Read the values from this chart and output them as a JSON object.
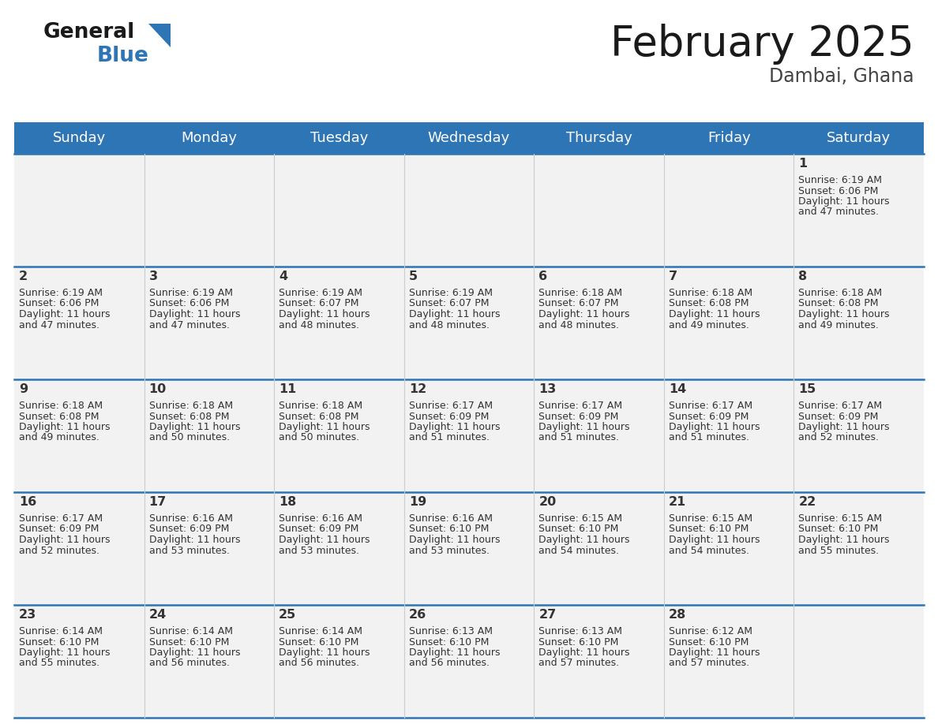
{
  "title": "February 2025",
  "subtitle": "Dambai, Ghana",
  "header_color": "#2E75B6",
  "header_text_color": "#FFFFFF",
  "cell_bg": "#F2F2F2",
  "border_color": "#2E75B6",
  "text_color": "#333333",
  "day_names": [
    "Sunday",
    "Monday",
    "Tuesday",
    "Wednesday",
    "Thursday",
    "Friday",
    "Saturday"
  ],
  "days": [
    {
      "day": 1,
      "col": 6,
      "row": 0,
      "sunrise": "6:19 AM",
      "sunset": "6:06 PM",
      "daylight": "11 hours",
      "daylight2": "and 47 minutes."
    },
    {
      "day": 2,
      "col": 0,
      "row": 1,
      "sunrise": "6:19 AM",
      "sunset": "6:06 PM",
      "daylight": "11 hours",
      "daylight2": "and 47 minutes."
    },
    {
      "day": 3,
      "col": 1,
      "row": 1,
      "sunrise": "6:19 AM",
      "sunset": "6:06 PM",
      "daylight": "11 hours",
      "daylight2": "and 47 minutes."
    },
    {
      "day": 4,
      "col": 2,
      "row": 1,
      "sunrise": "6:19 AM",
      "sunset": "6:07 PM",
      "daylight": "11 hours",
      "daylight2": "and 48 minutes."
    },
    {
      "day": 5,
      "col": 3,
      "row": 1,
      "sunrise": "6:19 AM",
      "sunset": "6:07 PM",
      "daylight": "11 hours",
      "daylight2": "and 48 minutes."
    },
    {
      "day": 6,
      "col": 4,
      "row": 1,
      "sunrise": "6:18 AM",
      "sunset": "6:07 PM",
      "daylight": "11 hours",
      "daylight2": "and 48 minutes."
    },
    {
      "day": 7,
      "col": 5,
      "row": 1,
      "sunrise": "6:18 AM",
      "sunset": "6:08 PM",
      "daylight": "11 hours",
      "daylight2": "and 49 minutes."
    },
    {
      "day": 8,
      "col": 6,
      "row": 1,
      "sunrise": "6:18 AM",
      "sunset": "6:08 PM",
      "daylight": "11 hours",
      "daylight2": "and 49 minutes."
    },
    {
      "day": 9,
      "col": 0,
      "row": 2,
      "sunrise": "6:18 AM",
      "sunset": "6:08 PM",
      "daylight": "11 hours",
      "daylight2": "and 49 minutes."
    },
    {
      "day": 10,
      "col": 1,
      "row": 2,
      "sunrise": "6:18 AM",
      "sunset": "6:08 PM",
      "daylight": "11 hours",
      "daylight2": "and 50 minutes."
    },
    {
      "day": 11,
      "col": 2,
      "row": 2,
      "sunrise": "6:18 AM",
      "sunset": "6:08 PM",
      "daylight": "11 hours",
      "daylight2": "and 50 minutes."
    },
    {
      "day": 12,
      "col": 3,
      "row": 2,
      "sunrise": "6:17 AM",
      "sunset": "6:09 PM",
      "daylight": "11 hours",
      "daylight2": "and 51 minutes."
    },
    {
      "day": 13,
      "col": 4,
      "row": 2,
      "sunrise": "6:17 AM",
      "sunset": "6:09 PM",
      "daylight": "11 hours",
      "daylight2": "and 51 minutes."
    },
    {
      "day": 14,
      "col": 5,
      "row": 2,
      "sunrise": "6:17 AM",
      "sunset": "6:09 PM",
      "daylight": "11 hours",
      "daylight2": "and 51 minutes."
    },
    {
      "day": 15,
      "col": 6,
      "row": 2,
      "sunrise": "6:17 AM",
      "sunset": "6:09 PM",
      "daylight": "11 hours",
      "daylight2": "and 52 minutes."
    },
    {
      "day": 16,
      "col": 0,
      "row": 3,
      "sunrise": "6:17 AM",
      "sunset": "6:09 PM",
      "daylight": "11 hours",
      "daylight2": "and 52 minutes."
    },
    {
      "day": 17,
      "col": 1,
      "row": 3,
      "sunrise": "6:16 AM",
      "sunset": "6:09 PM",
      "daylight": "11 hours",
      "daylight2": "and 53 minutes."
    },
    {
      "day": 18,
      "col": 2,
      "row": 3,
      "sunrise": "6:16 AM",
      "sunset": "6:09 PM",
      "daylight": "11 hours",
      "daylight2": "and 53 minutes."
    },
    {
      "day": 19,
      "col": 3,
      "row": 3,
      "sunrise": "6:16 AM",
      "sunset": "6:10 PM",
      "daylight": "11 hours",
      "daylight2": "and 53 minutes."
    },
    {
      "day": 20,
      "col": 4,
      "row": 3,
      "sunrise": "6:15 AM",
      "sunset": "6:10 PM",
      "daylight": "11 hours",
      "daylight2": "and 54 minutes."
    },
    {
      "day": 21,
      "col": 5,
      "row": 3,
      "sunrise": "6:15 AM",
      "sunset": "6:10 PM",
      "daylight": "11 hours",
      "daylight2": "and 54 minutes."
    },
    {
      "day": 22,
      "col": 6,
      "row": 3,
      "sunrise": "6:15 AM",
      "sunset": "6:10 PM",
      "daylight": "11 hours",
      "daylight2": "and 55 minutes."
    },
    {
      "day": 23,
      "col": 0,
      "row": 4,
      "sunrise": "6:14 AM",
      "sunset": "6:10 PM",
      "daylight": "11 hours",
      "daylight2": "and 55 minutes."
    },
    {
      "day": 24,
      "col": 1,
      "row": 4,
      "sunrise": "6:14 AM",
      "sunset": "6:10 PM",
      "daylight": "11 hours",
      "daylight2": "and 56 minutes."
    },
    {
      "day": 25,
      "col": 2,
      "row": 4,
      "sunrise": "6:14 AM",
      "sunset": "6:10 PM",
      "daylight": "11 hours",
      "daylight2": "and 56 minutes."
    },
    {
      "day": 26,
      "col": 3,
      "row": 4,
      "sunrise": "6:13 AM",
      "sunset": "6:10 PM",
      "daylight": "11 hours",
      "daylight2": "and 56 minutes."
    },
    {
      "day": 27,
      "col": 4,
      "row": 4,
      "sunrise": "6:13 AM",
      "sunset": "6:10 PM",
      "daylight": "11 hours",
      "daylight2": "and 57 minutes."
    },
    {
      "day": 28,
      "col": 5,
      "row": 4,
      "sunrise": "6:12 AM",
      "sunset": "6:10 PM",
      "daylight": "11 hours",
      "daylight2": "and 57 minutes."
    }
  ],
  "fig_width": 11.88,
  "fig_height": 9.18,
  "dpi": 100
}
